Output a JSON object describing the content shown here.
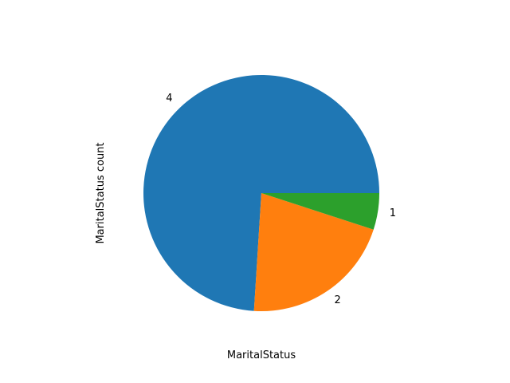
{
  "chart_data": {
    "type": "pie",
    "title": "",
    "xlabel": "MaritalStatus",
    "ylabel": "MaritalStatus count",
    "categories": [
      "4",
      "2",
      "1"
    ],
    "values": [
      74,
      21,
      5
    ],
    "colors": [
      "#1f77b4",
      "#ff7f0e",
      "#2ca02c"
    ],
    "start_angle_deg": 0,
    "direction": "counterclockwise",
    "legend": "none"
  }
}
